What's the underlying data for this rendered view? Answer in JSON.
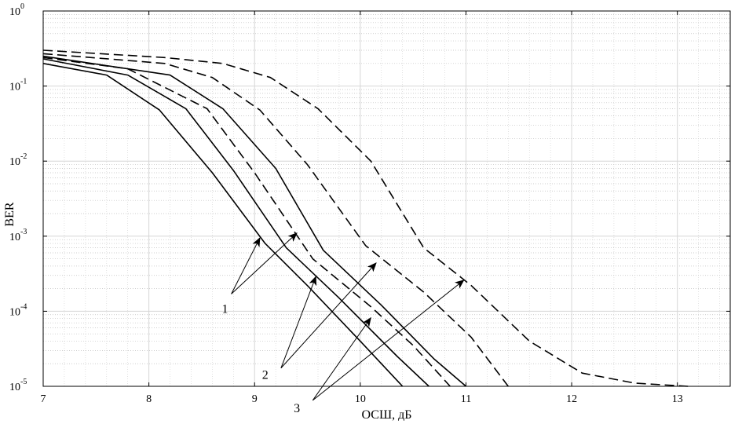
{
  "chart_data": {
    "type": "line",
    "title": "",
    "xlabel": "ОСШ, дБ",
    "ylabel": "BER",
    "xlim": [
      7,
      13.5
    ],
    "ylim": [
      1e-05,
      1
    ],
    "yscale": "log",
    "grid": true,
    "minor_grid": true,
    "x_ticks": [
      7,
      8,
      9,
      10,
      11,
      12,
      13
    ],
    "x_tick_labels": [
      "7",
      "8",
      "9",
      "10",
      "11",
      "12",
      "13"
    ],
    "y_ticks": [
      {
        "value": 1,
        "base": "10",
        "exp": "0"
      },
      {
        "value": 0.1,
        "base": "10",
        "exp": "-1"
      },
      {
        "value": 0.01,
        "base": "10",
        "exp": "-2"
      },
      {
        "value": 0.001,
        "base": "10",
        "exp": "-3"
      },
      {
        "value": 0.0001,
        "base": "10",
        "exp": "-4"
      },
      {
        "value": 1e-05,
        "base": "10",
        "exp": "-5"
      }
    ],
    "series": [
      {
        "style": "solid",
        "points": [
          [
            7.0,
            0.2
          ],
          [
            7.6,
            0.14
          ],
          [
            8.1,
            0.048
          ],
          [
            8.6,
            0.007
          ],
          [
            9.1,
            0.0008
          ],
          [
            9.5,
            0.00022
          ],
          [
            10.0,
            4e-05
          ],
          [
            10.4,
            1e-05
          ]
        ]
      },
      {
        "style": "solid",
        "points": [
          [
            7.0,
            0.23
          ],
          [
            7.8,
            0.14
          ],
          [
            8.35,
            0.05
          ],
          [
            8.8,
            0.0075
          ],
          [
            9.3,
            0.0007
          ],
          [
            9.8,
            0.00015
          ],
          [
            10.35,
            2.5e-05
          ],
          [
            10.65,
            1e-05
          ]
        ]
      },
      {
        "style": "solid",
        "points": [
          [
            7.0,
            0.25
          ],
          [
            8.2,
            0.14
          ],
          [
            8.7,
            0.05
          ],
          [
            9.2,
            0.008
          ],
          [
            9.65,
            0.00065
          ],
          [
            10.2,
            0.00012
          ],
          [
            10.7,
            2.3e-05
          ],
          [
            11.0,
            1e-05
          ]
        ]
      },
      {
        "style": "dashed",
        "points": [
          [
            7.0,
            0.24
          ],
          [
            7.8,
            0.17
          ],
          [
            8.55,
            0.05
          ],
          [
            9.0,
            0.007
          ],
          [
            9.55,
            0.0005
          ],
          [
            10.1,
            0.000115
          ],
          [
            10.5,
            3.5e-05
          ],
          [
            10.85,
            1e-05
          ]
        ]
      },
      {
        "style": "dashed",
        "points": [
          [
            7.0,
            0.27
          ],
          [
            8.15,
            0.2
          ],
          [
            8.6,
            0.13
          ],
          [
            9.05,
            0.048
          ],
          [
            9.5,
            0.009
          ],
          [
            10.05,
            0.00075
          ],
          [
            10.6,
            0.00018
          ],
          [
            11.05,
            4.5e-05
          ],
          [
            11.4,
            1e-05
          ]
        ]
      },
      {
        "style": "dashed",
        "points": [
          [
            7.0,
            0.3
          ],
          [
            8.15,
            0.24
          ],
          [
            8.7,
            0.2
          ],
          [
            9.15,
            0.13
          ],
          [
            9.6,
            0.05
          ],
          [
            10.1,
            0.01
          ],
          [
            10.6,
            0.0007
          ],
          [
            11.05,
            0.00022
          ],
          [
            11.6,
            4e-05
          ],
          [
            12.1,
            1.5e-05
          ],
          [
            12.6,
            1.1e-05
          ],
          [
            13.1,
            1e-05
          ]
        ]
      }
    ],
    "annotations": [
      {
        "text": "1",
        "label_pos": [
          8.72,
          9.5e-05
        ],
        "anchor": [
          8.78,
          0.00017
        ],
        "targets": [
          [
            9.05,
            0.00095
          ],
          [
            9.4,
            0.0011
          ]
        ]
      },
      {
        "text": "2",
        "label_pos": [
          9.1,
          1.25e-05
        ],
        "anchor": [
          9.25,
          1.75e-05
        ],
        "targets": [
          [
            9.58,
            0.00029
          ],
          [
            10.15,
            0.00044
          ]
        ]
      },
      {
        "text": "3",
        "label_pos": [
          9.4,
          4.5e-06
        ],
        "anchor": [
          9.55,
          6.5e-06
        ],
        "targets": [
          [
            10.1,
            8.2e-05
          ],
          [
            10.98,
            0.00026
          ]
        ]
      }
    ]
  }
}
